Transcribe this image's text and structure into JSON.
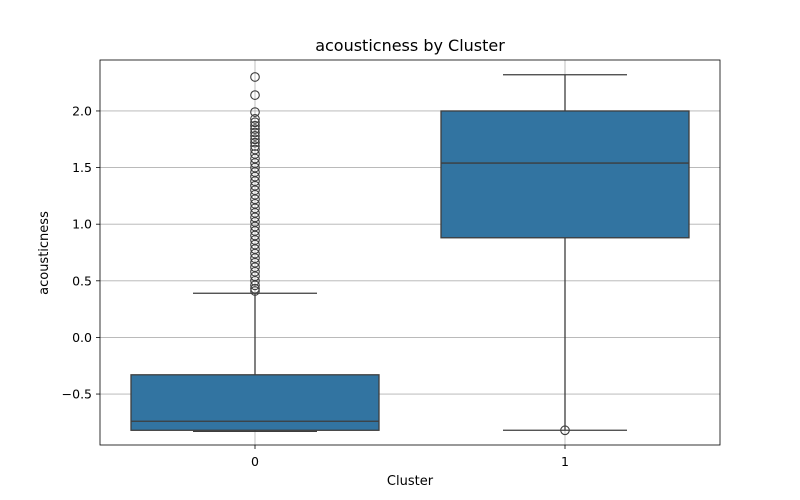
{
  "chart_data": {
    "type": "box",
    "title": "acousticness by Cluster",
    "xlabel": "Cluster",
    "ylabel": "acousticness",
    "categories": [
      "0",
      "1"
    ],
    "ylim": [
      -0.95,
      2.45
    ],
    "yticks": [
      -0.5,
      0.0,
      0.5,
      1.0,
      1.5,
      2.0
    ],
    "ytick_labels": [
      "−0.5",
      "0.0",
      "0.5",
      "1.0",
      "1.5",
      "2.0"
    ],
    "grid": true,
    "box_color": "#3274a1",
    "boxes": [
      {
        "category": "0",
        "whisker_low": -0.83,
        "q1": -0.82,
        "median": -0.74,
        "q3": -0.33,
        "whisker_high": 0.39,
        "outliers": [
          2.3,
          2.14,
          1.99,
          1.93,
          1.9,
          1.87,
          1.84,
          1.81,
          1.78,
          1.75,
          1.72,
          1.69,
          1.66,
          1.62,
          1.58,
          1.54,
          1.5,
          1.46,
          1.42,
          1.38,
          1.34,
          1.3,
          1.26,
          1.22,
          1.18,
          1.14,
          1.1,
          1.06,
          1.02,
          0.98,
          0.94,
          0.9,
          0.86,
          0.82,
          0.78,
          0.74,
          0.7,
          0.66,
          0.62,
          0.58,
          0.54,
          0.5,
          0.46,
          0.43,
          0.41
        ]
      },
      {
        "category": "1",
        "whisker_low": -0.82,
        "q1": 0.88,
        "median": 1.54,
        "q3": 2.0,
        "whisker_high": 2.32,
        "outliers": [
          -0.82
        ]
      }
    ]
  }
}
